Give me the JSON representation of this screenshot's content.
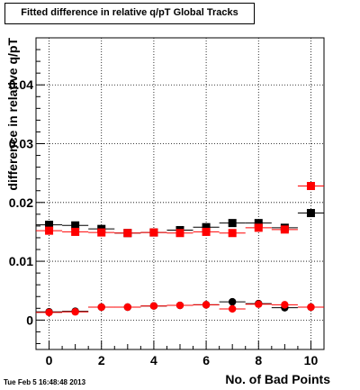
{
  "chart_data": {
    "type": "scatter",
    "title": "Fitted difference in relative q/pT  Global Tracks",
    "xlabel": "No. of Bad Points",
    "ylabel": "difference in relative q/pT",
    "xlim": [
      -0.5,
      10.5
    ],
    "ylim": [
      -0.005,
      0.048
    ],
    "x_ticks": [
      0,
      2,
      4,
      6,
      8,
      10
    ],
    "y_ticks": [
      0,
      0.01,
      0.02,
      0.03,
      0.04
    ],
    "y_tick_labels": [
      "0",
      "0.01",
      "0.02",
      "0.03",
      "0.04"
    ],
    "grid": true,
    "series": [
      {
        "color": "#000000",
        "marker": "square",
        "x": [
          0,
          1,
          2,
          3,
          4,
          5,
          6,
          7,
          8,
          9,
          10
        ],
        "y": [
          0.0162,
          0.0161,
          0.0155,
          0.0148,
          0.0149,
          0.0153,
          0.0158,
          0.0165,
          0.0165,
          0.0157,
          0.0182
        ]
      },
      {
        "color": "#ff0000",
        "marker": "square",
        "x": [
          0,
          1,
          2,
          3,
          4,
          5,
          6,
          7,
          8,
          9,
          10
        ],
        "y": [
          0.0152,
          0.015,
          0.0149,
          0.0148,
          0.0149,
          0.0148,
          0.015,
          0.0148,
          0.0157,
          0.0154,
          0.0228
        ]
      },
      {
        "color": "#000000",
        "marker": "circle",
        "x": [
          0,
          1,
          2,
          3,
          4,
          5,
          6,
          7,
          8,
          9,
          10
        ],
        "y": [
          0.0014,
          0.0015,
          0.0022,
          0.0022,
          0.0024,
          0.0025,
          0.0026,
          0.0031,
          0.0028,
          0.0021,
          0.0022
        ]
      },
      {
        "color": "#ff0000",
        "marker": "circle",
        "x": [
          0,
          1,
          2,
          3,
          4,
          5,
          6,
          7,
          8,
          9,
          10
        ],
        "y": [
          0.0013,
          0.0014,
          0.0022,
          0.0022,
          0.0024,
          0.0025,
          0.0026,
          0.0019,
          0.0027,
          0.0026,
          0.0022
        ]
      }
    ]
  },
  "footer": {
    "timestamp": "Tue Feb  5 16:48:48 2013"
  }
}
